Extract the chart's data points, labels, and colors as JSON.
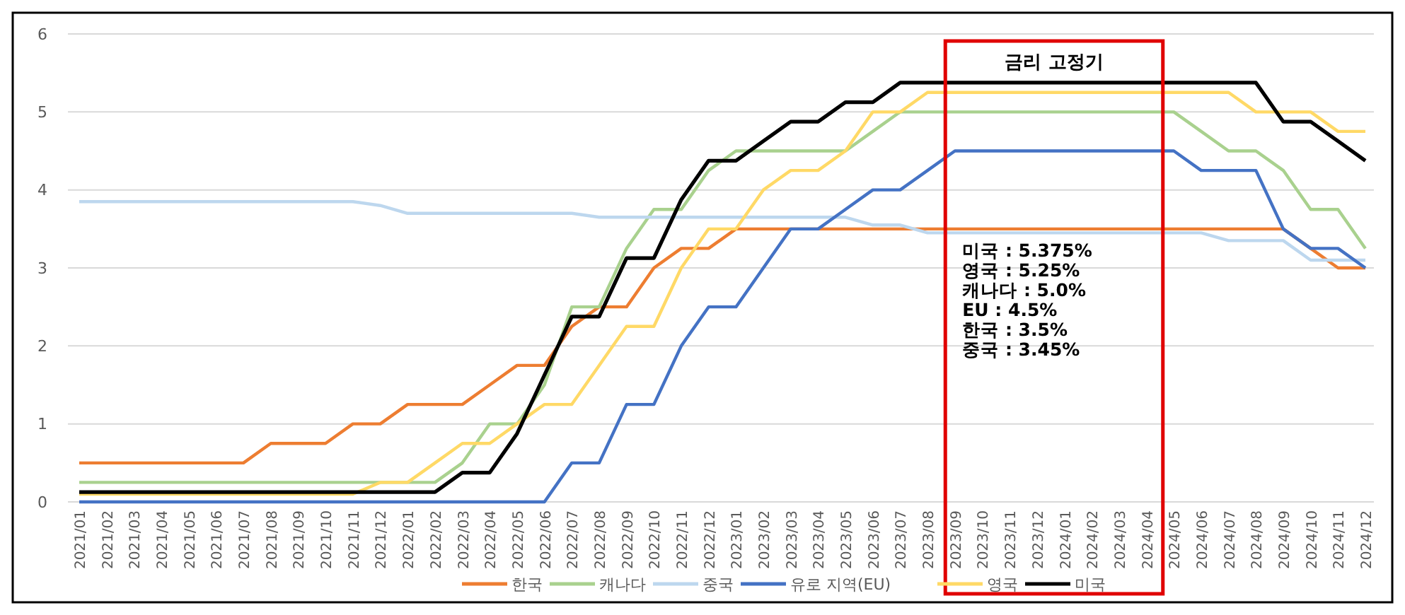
{
  "chart_data": {
    "type": "line",
    "categories": [
      "2021/01",
      "2021/02",
      "2021/03",
      "2021/04",
      "2021/05",
      "2021/06",
      "2021/07",
      "2021/08",
      "2021/09",
      "2021/10",
      "2021/11",
      "2021/12",
      "2022/01",
      "2022/02",
      "2022/03",
      "2022/04",
      "2022/05",
      "2022/06",
      "2022/07",
      "2022/08",
      "2022/09",
      "2022/10",
      "2022/11",
      "2022/12",
      "2023/01",
      "2023/02",
      "2023/03",
      "2023/04",
      "2023/05",
      "2023/06",
      "2023/07",
      "2023/08",
      "2023/09",
      "2023/10",
      "2023/11",
      "2023/12",
      "2024/01",
      "2024/02",
      "2024/03",
      "2024/04",
      "2024/05",
      "2024/06",
      "2024/07",
      "2024/08",
      "2024/09",
      "2024/10",
      "2024/11",
      "2024/12"
    ],
    "series": [
      {
        "name": "한국",
        "color": "#ed7d31",
        "values": [
          0.5,
          0.5,
          0.5,
          0.5,
          0.5,
          0.5,
          0.5,
          0.75,
          0.75,
          0.75,
          1.0,
          1.0,
          1.25,
          1.25,
          1.25,
          1.5,
          1.75,
          1.75,
          2.25,
          2.5,
          2.5,
          3.0,
          3.25,
          3.25,
          3.5,
          3.5,
          3.5,
          3.5,
          3.5,
          3.5,
          3.5,
          3.5,
          3.5,
          3.5,
          3.5,
          3.5,
          3.5,
          3.5,
          3.5,
          3.5,
          3.5,
          3.5,
          3.5,
          3.5,
          3.5,
          3.25,
          3.0,
          3.0
        ]
      },
      {
        "name": "캐나다",
        "color": "#a9d18e",
        "values": [
          0.25,
          0.25,
          0.25,
          0.25,
          0.25,
          0.25,
          0.25,
          0.25,
          0.25,
          0.25,
          0.25,
          0.25,
          0.25,
          0.25,
          0.5,
          1.0,
          1.0,
          1.5,
          2.5,
          2.5,
          3.25,
          3.75,
          3.75,
          4.25,
          4.5,
          4.5,
          4.5,
          4.5,
          4.5,
          4.75,
          5.0,
          5.0,
          5.0,
          5.0,
          5.0,
          5.0,
          5.0,
          5.0,
          5.0,
          5.0,
          5.0,
          4.75,
          4.5,
          4.5,
          4.25,
          3.75,
          3.75,
          3.25
        ]
      },
      {
        "name": "중국",
        "color": "#bdd7ee",
        "values": [
          3.85,
          3.85,
          3.85,
          3.85,
          3.85,
          3.85,
          3.85,
          3.85,
          3.85,
          3.85,
          3.85,
          3.8,
          3.7,
          3.7,
          3.7,
          3.7,
          3.7,
          3.7,
          3.7,
          3.65,
          3.65,
          3.65,
          3.65,
          3.65,
          3.65,
          3.65,
          3.65,
          3.65,
          3.65,
          3.55,
          3.55,
          3.45,
          3.45,
          3.45,
          3.45,
          3.45,
          3.45,
          3.45,
          3.45,
          3.45,
          3.45,
          3.45,
          3.35,
          3.35,
          3.35,
          3.1,
          3.1,
          3.1
        ]
      },
      {
        "name": "유로 지역(EU)",
        "color": "#4472c4",
        "values": [
          0,
          0,
          0,
          0,
          0,
          0,
          0,
          0,
          0,
          0,
          0,
          0,
          0,
          0,
          0,
          0,
          0,
          0,
          0.5,
          0.5,
          1.25,
          1.25,
          2.0,
          2.5,
          2.5,
          3.0,
          3.5,
          3.5,
          3.75,
          4.0,
          4.0,
          4.25,
          4.5,
          4.5,
          4.5,
          4.5,
          4.5,
          4.5,
          4.5,
          4.5,
          4.5,
          4.25,
          4.25,
          4.25,
          3.5,
          3.25,
          3.25,
          3.0
        ]
      },
      {
        "name": "영국",
        "color": "#ffd966",
        "values": [
          0.1,
          0.1,
          0.1,
          0.1,
          0.1,
          0.1,
          0.1,
          0.1,
          0.1,
          0.1,
          0.1,
          0.25,
          0.25,
          0.5,
          0.75,
          0.75,
          1.0,
          1.25,
          1.25,
          1.75,
          2.25,
          2.25,
          3.0,
          3.5,
          3.5,
          4.0,
          4.25,
          4.25,
          4.5,
          5.0,
          5.0,
          5.25,
          5.25,
          5.25,
          5.25,
          5.25,
          5.25,
          5.25,
          5.25,
          5.25,
          5.25,
          5.25,
          5.25,
          5.0,
          5.0,
          5.0,
          4.75,
          4.75
        ]
      },
      {
        "name": "미국",
        "color": "#000000",
        "values": [
          0.125,
          0.125,
          0.125,
          0.125,
          0.125,
          0.125,
          0.125,
          0.125,
          0.125,
          0.125,
          0.125,
          0.125,
          0.125,
          0.125,
          0.375,
          0.375,
          0.875,
          1.625,
          2.375,
          2.375,
          3.125,
          3.125,
          3.875,
          4.375,
          4.375,
          4.625,
          4.875,
          4.875,
          5.125,
          5.125,
          5.375,
          5.375,
          5.375,
          5.375,
          5.375,
          5.375,
          5.375,
          5.375,
          5.375,
          5.375,
          5.375,
          5.375,
          5.375,
          5.375,
          4.875,
          4.875,
          4.625,
          4.375
        ]
      }
    ],
    "ylim": [
      0,
      6
    ],
    "yticks": [
      0,
      1,
      2,
      3,
      4,
      5,
      6
    ],
    "grid": "y",
    "legend": "bottom",
    "marker": "none",
    "annotations": [
      "금리 고정기",
      "미국 : 5.375%",
      "영국 : 5.25%",
      "캐나다 : 5.0%",
      "EU : 4.5%",
      "한국 : 3.5%",
      "중국 : 3.45%"
    ]
  }
}
